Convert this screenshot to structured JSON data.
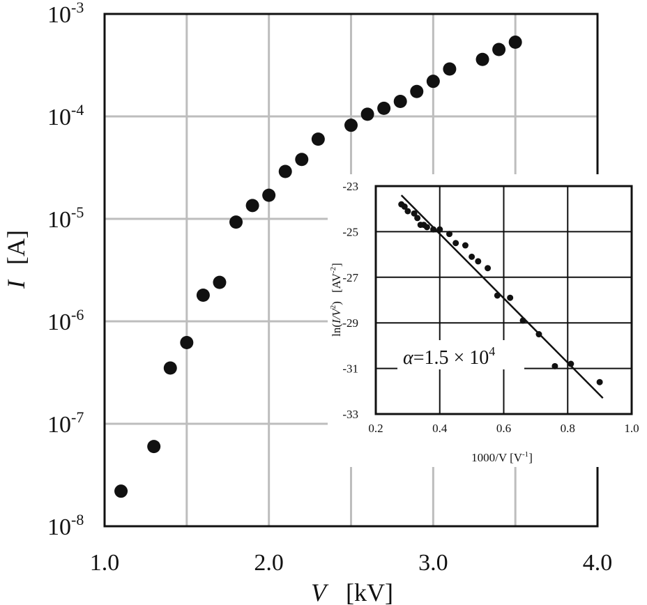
{
  "chart_data": [
    {
      "type": "scatter",
      "id": "main",
      "title": "",
      "x_label_symbol": "V",
      "x_label_unit": "[kV]",
      "y_label_symbol": "I",
      "y_label_unit": "[A]",
      "y_scale": "log",
      "xlim": [
        1.0,
        4.0
      ],
      "ylim": [
        1e-08,
        0.001
      ],
      "grid": true,
      "x_ticks": [
        {
          "value": 1.0,
          "label": "1.0"
        },
        {
          "value": 2.0,
          "label": "2.0"
        },
        {
          "value": 3.0,
          "label": "3.0"
        },
        {
          "value": 4.0,
          "label": "4.0"
        }
      ],
      "y_ticks": [
        {
          "exp": -8,
          "base": "10",
          "sup": "-8"
        },
        {
          "exp": -7,
          "base": "10",
          "sup": "-7"
        },
        {
          "exp": -6,
          "base": "10",
          "sup": "-6"
        },
        {
          "exp": -5,
          "base": "10",
          "sup": "-5"
        },
        {
          "exp": -4,
          "base": "10",
          "sup": "-4"
        },
        {
          "exp": -3,
          "base": "10",
          "sup": "-3"
        }
      ],
      "series": [
        {
          "points": [
            {
              "x": 1.1,
              "y": 2.2e-08
            },
            {
              "x": 1.3,
              "y": 6e-08
            },
            {
              "x": 1.4,
              "y": 3.5e-07
            },
            {
              "x": 1.5,
              "y": 6.2e-07
            },
            {
              "x": 1.6,
              "y": 1.8e-06
            },
            {
              "x": 1.7,
              "y": 2.4e-06
            },
            {
              "x": 1.8,
              "y": 9.3e-06
            },
            {
              "x": 1.9,
              "y": 1.35e-05
            },
            {
              "x": 2.0,
              "y": 1.7e-05
            },
            {
              "x": 2.1,
              "y": 2.9e-05
            },
            {
              "x": 2.2,
              "y": 3.8e-05
            },
            {
              "x": 2.3,
              "y": 6e-05
            },
            {
              "x": 2.5,
              "y": 8.2e-05
            },
            {
              "x": 2.6,
              "y": 0.000105
            },
            {
              "x": 2.7,
              "y": 0.00012
            },
            {
              "x": 2.8,
              "y": 0.00014
            },
            {
              "x": 2.9,
              "y": 0.000175
            },
            {
              "x": 3.0,
              "y": 0.00022
            },
            {
              "x": 3.1,
              "y": 0.00029
            },
            {
              "x": 3.3,
              "y": 0.00036
            },
            {
              "x": 3.4,
              "y": 0.00045
            },
            {
              "x": 3.5,
              "y": 0.00053
            }
          ]
        }
      ]
    },
    {
      "type": "scatter",
      "id": "inset",
      "title": "",
      "xlabel": "1000/V  [V",
      "xlabel_sup": "-1",
      "xlabel_end": "]",
      "ylabel_ln": "ln(",
      "ylabel_frac": "I/V",
      "ylabel_sup": "2",
      "ylabel_close": ")",
      "ylabel_unit": "[AV",
      "ylabel_unit_sup": "-2",
      "ylabel_unit_end": "]",
      "xlim": [
        0.2,
        1.0
      ],
      "ylim": [
        -33,
        -23
      ],
      "grid": true,
      "x_ticks": [
        "0.2",
        "0.4",
        "0.6",
        "0.8",
        "1.0"
      ],
      "y_ticks": [
        "-23",
        "-25",
        "-27",
        "-29",
        "-31",
        "-33"
      ],
      "annotation": {
        "symbol": "α",
        "text": "=1.5 × 10",
        "sup": "4"
      },
      "fit_line": {
        "x": [
          0.28,
          0.91
        ],
        "y": [
          -23.4,
          -32.3
        ]
      },
      "points": [
        {
          "x": 0.28,
          "y": -23.8
        },
        {
          "x": 0.29,
          "y": -23.9
        },
        {
          "x": 0.3,
          "y": -24.1
        },
        {
          "x": 0.32,
          "y": -24.2
        },
        {
          "x": 0.33,
          "y": -24.4
        },
        {
          "x": 0.34,
          "y": -24.7
        },
        {
          "x": 0.35,
          "y": -24.7
        },
        {
          "x": 0.36,
          "y": -24.8
        },
        {
          "x": 0.38,
          "y": -24.9
        },
        {
          "x": 0.4,
          "y": -24.9
        },
        {
          "x": 0.43,
          "y": -25.1
        },
        {
          "x": 0.45,
          "y": -25.5
        },
        {
          "x": 0.48,
          "y": -25.6
        },
        {
          "x": 0.5,
          "y": -26.1
        },
        {
          "x": 0.52,
          "y": -26.3
        },
        {
          "x": 0.55,
          "y": -26.6
        },
        {
          "x": 0.58,
          "y": -27.8
        },
        {
          "x": 0.62,
          "y": -27.9
        },
        {
          "x": 0.66,
          "y": -28.9
        },
        {
          "x": 0.71,
          "y": -29.5
        },
        {
          "x": 0.76,
          "y": -30.9
        },
        {
          "x": 0.81,
          "y": -30.8
        },
        {
          "x": 0.9,
          "y": -31.6
        }
      ]
    }
  ],
  "colors": {
    "grid": "#bdbdbd",
    "inset_grid": "#111111",
    "axis": "#111111",
    "marker": "#111111"
  }
}
